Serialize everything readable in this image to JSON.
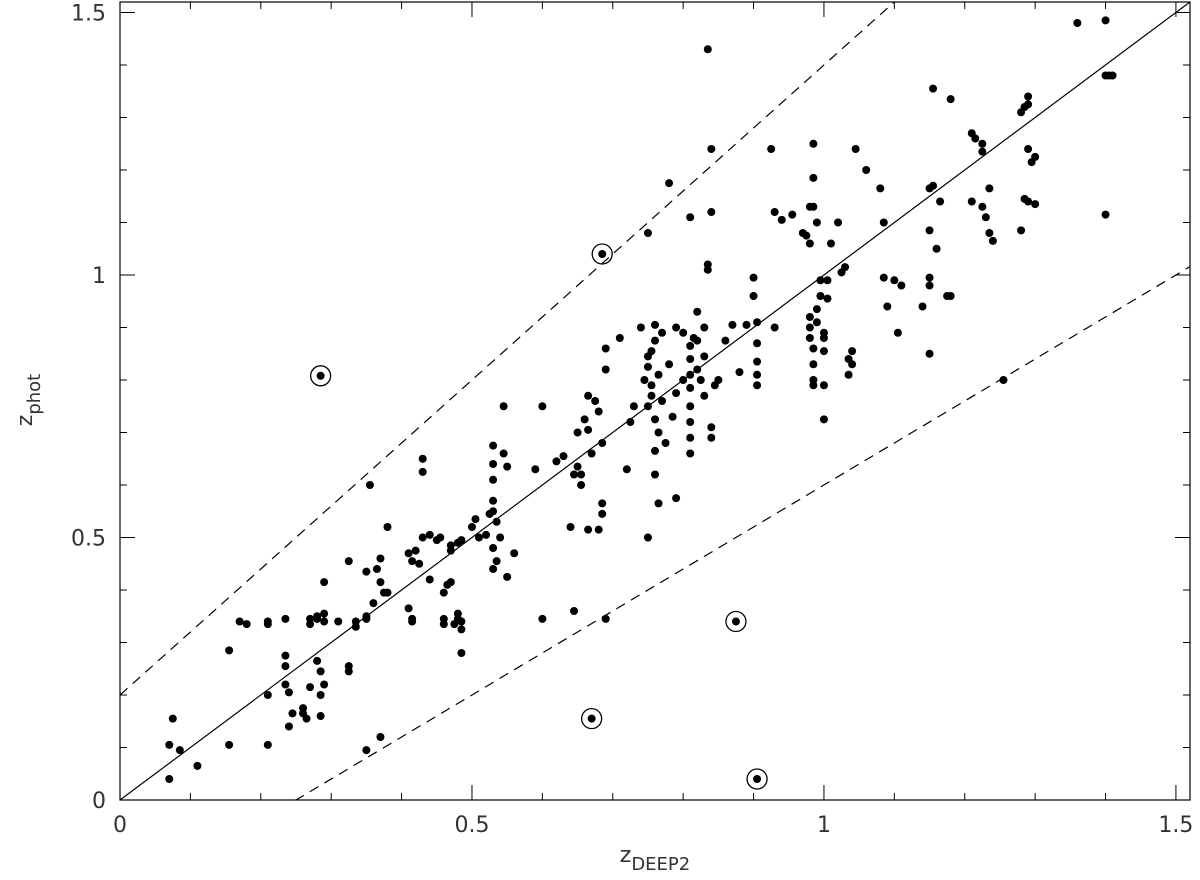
{
  "chart_data": {
    "type": "scatter",
    "xlabel": {
      "main": "z",
      "sub": "DEEP2"
    },
    "ylabel": {
      "main": "z",
      "sub": "phot"
    },
    "xlim": [
      0,
      1.52
    ],
    "ylim": [
      0,
      1.52
    ],
    "xticks": [
      0,
      0.5,
      1,
      1.5
    ],
    "yticks": [
      0,
      0.5,
      1,
      1.5
    ],
    "xminorticks": [
      0.1,
      0.2,
      0.3,
      0.4,
      0.6,
      0.7,
      0.8,
      0.9,
      1.1,
      1.2,
      1.3,
      1.4
    ],
    "yminorticks": [
      0.1,
      0.2,
      0.3,
      0.4,
      0.6,
      0.7,
      0.8,
      0.9,
      1.1,
      1.2,
      1.3,
      1.4
    ],
    "reference_lines": [
      {
        "slope": 1,
        "intercept": 0,
        "dashed": false
      },
      {
        "slope": 1.2,
        "intercept": 0.2,
        "dashed": true
      },
      {
        "slope": 0.8,
        "intercept": -0.2,
        "dashed": true
      }
    ],
    "series": [
      {
        "color": "#000000",
        "marker": "dot",
        "x": [
          0.07,
          0.07,
          0.075,
          0.085,
          0.11,
          0.155,
          0.155,
          0.17,
          0.18,
          0.21,
          0.21,
          0.21,
          0.21,
          0.235,
          0.235,
          0.24,
          0.235,
          0.235,
          0.24,
          0.245,
          0.26,
          0.26,
          0.265,
          0.27,
          0.27,
          0.27,
          0.28,
          0.28,
          0.28,
          0.285,
          0.285,
          0.285,
          0.29,
          0.29,
          0.29,
          0.29,
          0.31,
          0.325,
          0.325,
          0.325,
          0.335,
          0.335,
          0.35,
          0.35,
          0.35,
          0.35,
          0.355,
          0.36,
          0.365,
          0.37,
          0.37,
          0.37,
          0.375,
          0.38,
          0.38,
          0.41,
          0.415,
          0.415,
          0.41,
          0.415,
          0.42,
          0.425,
          0.43,
          0.43,
          0.43,
          0.44,
          0.44,
          0.45,
          0.455,
          0.46,
          0.46,
          0.46,
          0.465,
          0.47,
          0.47,
          0.47,
          0.475,
          0.48,
          0.48,
          0.48,
          0.485,
          0.485,
          0.485,
          0.485,
          0.5,
          0.505,
          0.51,
          0.52,
          0.525,
          0.53,
          0.53,
          0.53,
          0.53,
          0.53,
          0.53,
          0.53,
          0.535,
          0.535,
          0.54,
          0.545,
          0.545,
          0.55,
          0.55,
          0.56,
          0.59,
          0.6,
          0.6,
          0.62,
          0.63,
          0.64,
          0.645,
          0.645,
          0.65,
          0.65,
          0.655,
          0.655,
          0.66,
          0.665,
          0.665,
          0.665,
          0.67,
          0.675,
          0.68,
          0.68,
          0.685,
          0.685,
          0.685,
          0.69,
          0.69,
          0.69,
          0.71,
          0.72,
          0.725,
          0.73,
          0.74,
          0.745,
          0.75,
          0.75,
          0.75,
          0.75,
          0.755,
          0.755,
          0.755,
          0.76,
          0.76,
          0.76,
          0.76,
          0.76,
          0.765,
          0.765,
          0.765,
          0.77,
          0.77,
          0.775,
          0.78,
          0.785,
          0.79,
          0.79,
          0.79,
          0.8,
          0.8,
          0.81,
          0.81,
          0.81,
          0.81,
          0.81,
          0.81,
          0.81,
          0.81,
          0.815,
          0.82,
          0.82,
          0.82,
          0.825,
          0.83,
          0.83,
          0.83,
          0.835,
          0.835,
          0.84,
          0.84,
          0.835,
          0.84,
          0.84,
          0.845,
          0.85,
          0.81,
          0.75,
          0.78,
          0.86,
          0.87,
          0.88,
          0.89,
          0.9,
          0.9,
          0.905,
          0.905,
          0.905,
          0.905,
          0.905,
          0.93,
          0.925,
          0.93,
          0.94,
          0.955,
          0.97,
          0.975,
          0.98,
          0.98,
          0.985,
          0.985,
          0.985,
          0.99,
          0.98,
          0.98,
          0.98,
          0.985,
          0.985,
          0.985,
          0.985,
          0.99,
          0.99,
          0.995,
          0.995,
          1.0,
          1.0,
          1.0,
          1.0,
          1.0,
          1.005,
          1.005,
          1.01,
          1.02,
          1.025,
          1.03,
          1.035,
          1.035,
          1.04,
          1.04,
          1.045,
          1.06,
          1.08,
          1.085,
          1.085,
          1.09,
          1.1,
          1.105,
          1.11,
          1.14,
          1.15,
          1.15,
          1.15,
          1.15,
          1.15,
          1.155,
          1.155,
          1.16,
          1.165,
          1.175,
          1.18,
          1.18,
          1.21,
          1.215,
          1.21,
          1.225,
          1.225,
          1.225,
          1.23,
          1.235,
          1.235,
          1.24,
          1.255,
          1.28,
          1.28,
          1.285,
          1.285,
          1.29,
          1.29,
          1.29,
          1.29,
          1.295,
          1.3,
          1.3,
          1.36,
          1.4,
          1.4,
          1.405,
          1.41,
          1.4
        ],
        "values": [
          0.04,
          0.105,
          0.155,
          0.095,
          0.065,
          0.105,
          0.285,
          0.34,
          0.335,
          0.34,
          0.335,
          0.2,
          0.105,
          0.345,
          0.22,
          0.14,
          0.255,
          0.275,
          0.205,
          0.165,
          0.175,
          0.165,
          0.155,
          0.215,
          0.345,
          0.335,
          0.345,
          0.35,
          0.265,
          0.245,
          0.16,
          0.2,
          0.22,
          0.415,
          0.34,
          0.355,
          0.34,
          0.455,
          0.245,
          0.255,
          0.34,
          0.33,
          0.345,
          0.35,
          0.435,
          0.095,
          0.6,
          0.375,
          0.44,
          0.12,
          0.46,
          0.415,
          0.395,
          0.395,
          0.52,
          0.365,
          0.345,
          0.34,
          0.47,
          0.455,
          0.475,
          0.45,
          0.5,
          0.65,
          0.625,
          0.505,
          0.42,
          0.495,
          0.5,
          0.345,
          0.335,
          0.395,
          0.41,
          0.415,
          0.485,
          0.475,
          0.335,
          0.345,
          0.355,
          0.49,
          0.495,
          0.34,
          0.325,
          0.28,
          0.52,
          0.535,
          0.5,
          0.505,
          0.545,
          0.55,
          0.48,
          0.675,
          0.64,
          0.61,
          0.57,
          0.44,
          0.455,
          0.53,
          0.5,
          0.75,
          0.66,
          0.635,
          0.425,
          0.47,
          0.63,
          0.75,
          0.345,
          0.645,
          0.655,
          0.52,
          0.62,
          0.36,
          0.7,
          0.635,
          0.62,
          0.6,
          0.725,
          0.705,
          0.515,
          0.77,
          0.66,
          0.76,
          0.74,
          0.515,
          0.565,
          0.545,
          0.68,
          0.82,
          0.86,
          0.345,
          0.88,
          0.63,
          0.72,
          0.75,
          0.9,
          0.8,
          0.825,
          0.845,
          0.5,
          0.75,
          0.77,
          0.79,
          0.855,
          0.875,
          0.905,
          0.725,
          0.665,
          0.62,
          0.81,
          0.7,
          0.565,
          0.89,
          0.76,
          0.68,
          0.83,
          0.73,
          0.9,
          0.775,
          0.575,
          0.8,
          0.89,
          0.865,
          0.84,
          0.81,
          0.785,
          0.75,
          0.72,
          0.69,
          0.66,
          0.88,
          0.93,
          0.875,
          0.82,
          0.8,
          0.845,
          0.9,
          0.77,
          1.02,
          1.01,
          1.12,
          1.24,
          1.43,
          0.71,
          0.69,
          0.79,
          0.8,
          1.11,
          1.08,
          1.175,
          0.875,
          0.905,
          0.815,
          0.905,
          0.995,
          0.96,
          0.91,
          0.87,
          0.835,
          0.81,
          0.79,
          0.9,
          1.24,
          1.12,
          1.105,
          1.115,
          1.08,
          1.075,
          1.13,
          1.06,
          1.25,
          1.185,
          1.13,
          1.1,
          0.92,
          0.9,
          0.88,
          0.86,
          0.83,
          0.8,
          0.79,
          0.935,
          0.91,
          0.99,
          0.96,
          0.89,
          0.88,
          0.855,
          0.79,
          0.725,
          0.99,
          0.955,
          1.06,
          1.1,
          1.005,
          1.015,
          0.81,
          0.84,
          0.83,
          0.855,
          1.24,
          1.2,
          1.165,
          1.1,
          0.995,
          0.94,
          0.99,
          0.89,
          0.98,
          0.94,
          0.995,
          0.98,
          0.85,
          1.085,
          1.165,
          1.355,
          1.17,
          1.05,
          1.14,
          0.96,
          0.96,
          1.335,
          1.27,
          1.26,
          1.14,
          1.235,
          1.25,
          1.13,
          1.11,
          1.165,
          1.08,
          1.065,
          0.8,
          1.085,
          1.31,
          1.32,
          1.145,
          1.34,
          1.325,
          1.24,
          1.14,
          1.215,
          1.225,
          1.135,
          1.48,
          1.485,
          1.38,
          1.38,
          1.38,
          1.115
        ]
      },
      {
        "color": "#000000",
        "marker": "circled",
        "x": [
          0.285,
          0.685,
          0.875,
          0.67,
          0.905
        ],
        "values": [
          0.808,
          1.04,
          0.34,
          0.155,
          0.04
        ]
      }
    ]
  }
}
